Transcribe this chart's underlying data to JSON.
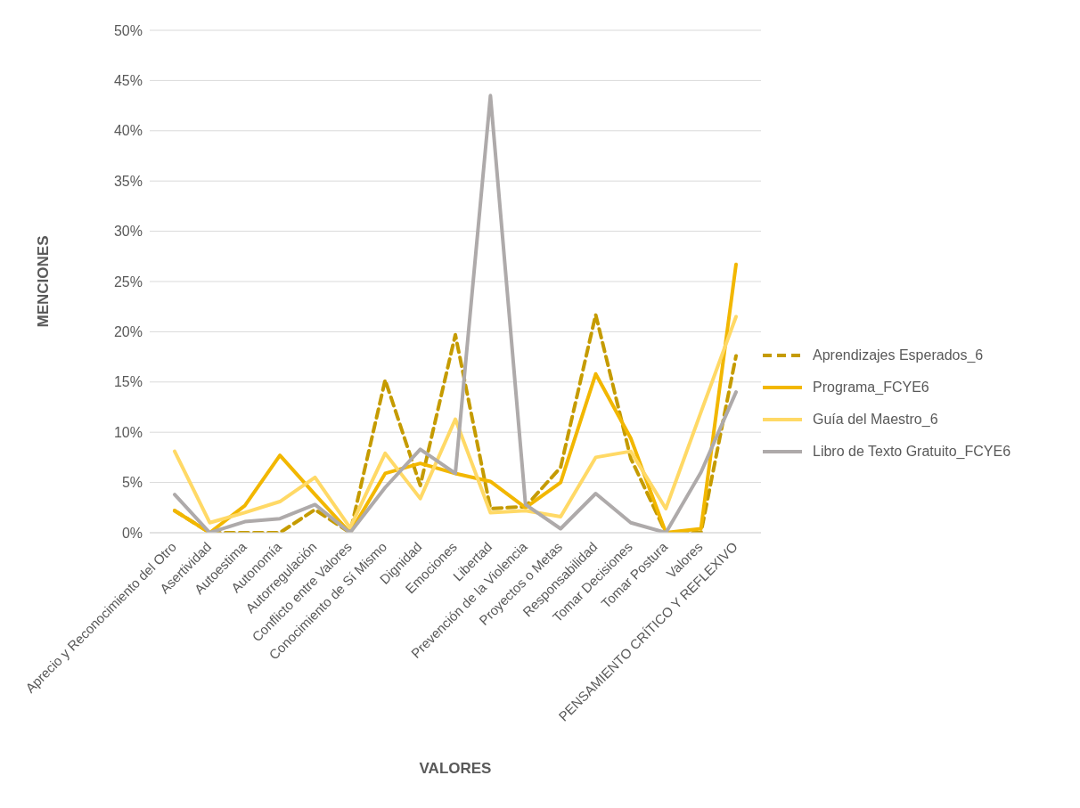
{
  "chart_data": {
    "type": "line",
    "xlabel": "VALORES",
    "ylabel": "MENCIONES",
    "categories": [
      "Aprecio y Reconocimiento del Otro",
      "Asertividad",
      "Autoestima",
      "Autonomía",
      "Autorregulación",
      "Conflicto entre Valores",
      "Conocimiento de Sí Mismo",
      "Dignidad",
      "Emociones",
      "Libertad",
      "Prevención de la Violencia",
      "Proyectos o Metas",
      "Responsabilidad",
      "Tomar Decisiones",
      "Tomar Postura",
      "Valores",
      "PENSAMIENTO CRÍTICO Y REFLEXIVO"
    ],
    "series": [
      {
        "name": "Aprendizajes Esperados_6",
        "color": "#c59b00",
        "line_style": "dashed",
        "values": [
          2.2,
          0,
          0,
          0,
          2.3,
          0,
          15.2,
          4.7,
          19.7,
          2.4,
          2.6,
          6.5,
          21.7,
          7.4,
          0,
          0,
          17.6
        ]
      },
      {
        "name": "Programa_FCYE6",
        "color": "#f2b700",
        "line_style": "solid",
        "values": [
          2.2,
          0,
          2.7,
          7.7,
          3.8,
          0,
          5.9,
          6.9,
          5.9,
          5.1,
          2.5,
          5.0,
          15.8,
          9.4,
          0,
          0.4,
          26.7
        ]
      },
      {
        "name": "Guía del Maestro_6",
        "color": "#ffd966",
        "line_style": "solid",
        "values": [
          8.1,
          1.0,
          2.0,
          3.1,
          5.5,
          0.5,
          7.9,
          3.4,
          11.3,
          2.0,
          2.2,
          1.6,
          7.5,
          8.1,
          2.4,
          12.0,
          21.5
        ]
      },
      {
        "name": "Libro de Texto Gratuito_FCYE6",
        "color": "#aeaaaa",
        "line_style": "solid",
        "values": [
          3.8,
          0,
          1.1,
          1.4,
          2.8,
          0,
          4.5,
          8.3,
          5.9,
          43.5,
          2.8,
          0.4,
          3.9,
          1.0,
          0,
          6.0,
          14.0
        ]
      }
    ],
    "ylim": [
      0,
      50
    ],
    "yticks": [
      {
        "value": 0,
        "label": "0%"
      },
      {
        "value": 5,
        "label": "5%"
      },
      {
        "value": 10,
        "label": "10%"
      },
      {
        "value": 15,
        "label": "15%"
      },
      {
        "value": 20,
        "label": "20%"
      },
      {
        "value": 25,
        "label": "25%"
      },
      {
        "value": 30,
        "label": "30%"
      },
      {
        "value": 35,
        "label": "35%"
      },
      {
        "value": 40,
        "label": "40%"
      },
      {
        "value": 45,
        "label": "45%"
      },
      {
        "value": 50,
        "label": "50%"
      }
    ],
    "grid": "y",
    "legend": "right",
    "marker": "none"
  }
}
